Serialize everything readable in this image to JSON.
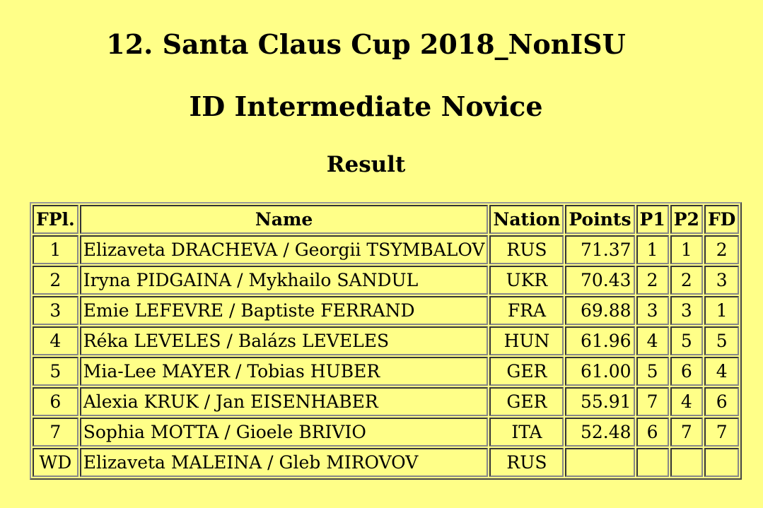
{
  "header": {
    "event": "12. Santa Claus Cup 2018_NonISU",
    "category": "ID Intermediate Novice",
    "section": "Result"
  },
  "table": {
    "columns": {
      "fpl": "FPl.",
      "name": "Name",
      "nation": "Nation",
      "points": "Points",
      "p1": "P1",
      "p2": "P2",
      "fd": "FD"
    },
    "rows": [
      {
        "fpl": "1",
        "name": "Elizaveta DRACHEVA / Georgii TSYMBALOV",
        "nation": "RUS",
        "points": "71.37",
        "p1": "1",
        "p2": "1",
        "fd": "2"
      },
      {
        "fpl": "2",
        "name": "Iryna PIDGAINA / Mykhailo SANDUL",
        "nation": "UKR",
        "points": "70.43",
        "p1": "2",
        "p2": "2",
        "fd": "3"
      },
      {
        "fpl": "3",
        "name": "Emie LEFEVRE / Baptiste FERRAND",
        "nation": "FRA",
        "points": "69.88",
        "p1": "3",
        "p2": "3",
        "fd": "1"
      },
      {
        "fpl": "4",
        "name": "Réka LEVELES / Balázs LEVELES",
        "nation": "HUN",
        "points": "61.96",
        "p1": "4",
        "p2": "5",
        "fd": "5"
      },
      {
        "fpl": "5",
        "name": "Mia-Lee MAYER / Tobias HUBER",
        "nation": "GER",
        "points": "61.00",
        "p1": "5",
        "p2": "6",
        "fd": "4"
      },
      {
        "fpl": "6",
        "name": "Alexia KRUK / Jan EISENHABER",
        "nation": "GER",
        "points": "55.91",
        "p1": "7",
        "p2": "4",
        "fd": "6"
      },
      {
        "fpl": "7",
        "name": "Sophia MOTTA / Gioele BRIVIO",
        "nation": "ITA",
        "points": "52.48",
        "p1": "6",
        "p2": "7",
        "fd": "7"
      },
      {
        "fpl": "WD",
        "name": "Elizaveta MALEINA / Gleb MIROVOV",
        "nation": "RUS",
        "points": "",
        "p1": "",
        "p2": "",
        "fd": ""
      }
    ]
  }
}
